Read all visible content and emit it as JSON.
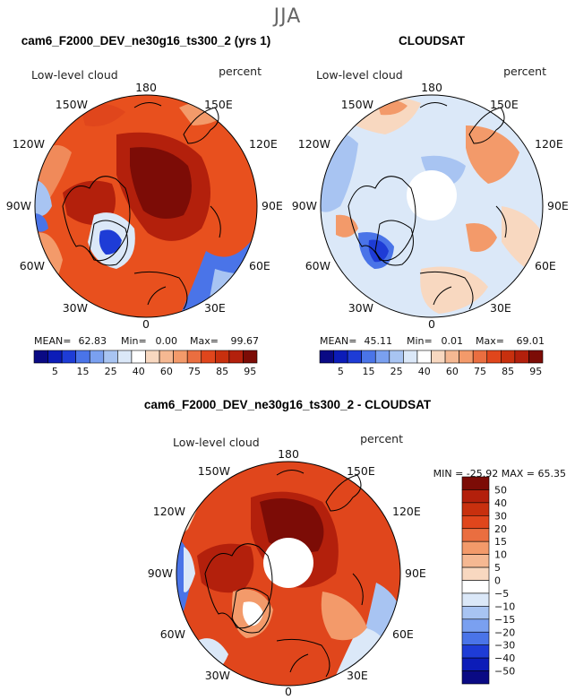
{
  "figure": {
    "season": "JJA",
    "colors": {
      "deep_blue": "#0a0a84",
      "blue": "#1e3cd6",
      "mid_blue": "#4a74e8",
      "light_blue": "#a8c4f2",
      "pale_blue": "#dbe8f8",
      "white": "#ffffff",
      "pale_orange": "#f8d8c0",
      "orange": "#f39a6a",
      "red": "#e0461c",
      "dark_red": "#b3200c",
      "maroon": "#7c0c06"
    }
  },
  "panels": [
    {
      "title": "cam6_F2000_DEV_ne30g16_ts300_2 (yrs 1)",
      "variable": "Low-level cloud",
      "units": "percent",
      "lon_labels": [
        "180",
        "150E",
        "120E",
        "90E",
        "60E",
        "30E",
        "0",
        "30W",
        "60W",
        "90W",
        "120W",
        "150W"
      ],
      "stats": {
        "mean_label": "MEAN=",
        "mean": "62.83",
        "min_label": "Min=",
        "min": "0.00",
        "max_label": "Max=",
        "max": "99.67"
      },
      "colorbar_ticks": [
        "5",
        "15",
        "25",
        "40",
        "60",
        "75",
        "85",
        "95"
      ]
    },
    {
      "title": "CLOUDSAT",
      "variable": "Low-level cloud",
      "units": "percent",
      "lon_labels": [
        "180",
        "150E",
        "120E",
        "90E",
        "60E",
        "30E",
        "0",
        "30W",
        "60W",
        "90W",
        "120W",
        "150W"
      ],
      "stats": {
        "mean_label": "MEAN=",
        "mean": "45.11",
        "min_label": "Min=",
        "min": "0.01",
        "max_label": "Max=",
        "max": "69.01"
      },
      "colorbar_ticks": [
        "5",
        "15",
        "25",
        "40",
        "60",
        "75",
        "85",
        "95"
      ]
    },
    {
      "title": "cam6_F2000_DEV_ne30g16_ts300_2 - CLOUDSAT",
      "variable": "Low-level cloud",
      "units": "percent",
      "lon_labels": [
        "180",
        "150E",
        "120E",
        "90E",
        "60E",
        "30E",
        "0",
        "30W",
        "60W",
        "90W",
        "120W",
        "150W"
      ],
      "stats_line": "MIN = -25.92  MAX =  65.35",
      "colorbar_ticks": [
        "50",
        "40",
        "30",
        "20",
        "15",
        "10",
        "5",
        "0",
        "−5",
        "−10",
        "−15",
        "−20",
        "−30",
        "−40",
        "−50"
      ]
    }
  ],
  "chart_data": [
    {
      "type": "heatmap",
      "projection": "north polar stereographic",
      "title": "cam6_F2000_DEV_ne30g16_ts300_2 (yrs 1)",
      "variable": "Low-level cloud",
      "units": "percent",
      "mean": 62.83,
      "min": 0.0,
      "max": 99.67,
      "levels": [
        5,
        10,
        15,
        20,
        25,
        30,
        40,
        50,
        60,
        70,
        75,
        80,
        85,
        90,
        95
      ],
      "colorbar_ticks": [
        5,
        15,
        25,
        40,
        60,
        75,
        85,
        95
      ]
    },
    {
      "type": "heatmap",
      "projection": "north polar stereographic",
      "title": "CLOUDSAT",
      "variable": "Low-level cloud",
      "units": "percent",
      "mean": 45.11,
      "min": 0.01,
      "max": 69.01,
      "levels": [
        5,
        10,
        15,
        20,
        25,
        30,
        40,
        50,
        60,
        70,
        75,
        80,
        85,
        90,
        95
      ],
      "colorbar_ticks": [
        5,
        15,
        25,
        40,
        60,
        75,
        85,
        95
      ]
    },
    {
      "type": "heatmap",
      "projection": "north polar stereographic",
      "title": "cam6_F2000_DEV_ne30g16_ts300_2 - CLOUDSAT",
      "variable": "Low-level cloud",
      "units": "percent",
      "min": -25.92,
      "max": 65.35,
      "levels": [
        -50,
        -40,
        -30,
        -20,
        -15,
        -10,
        -5,
        0,
        5,
        10,
        15,
        20,
        30,
        40,
        50
      ],
      "colorbar_ticks": [
        50,
        40,
        30,
        20,
        15,
        10,
        5,
        0,
        -5,
        -10,
        -15,
        -20,
        -30,
        -40,
        -50
      ]
    }
  ]
}
